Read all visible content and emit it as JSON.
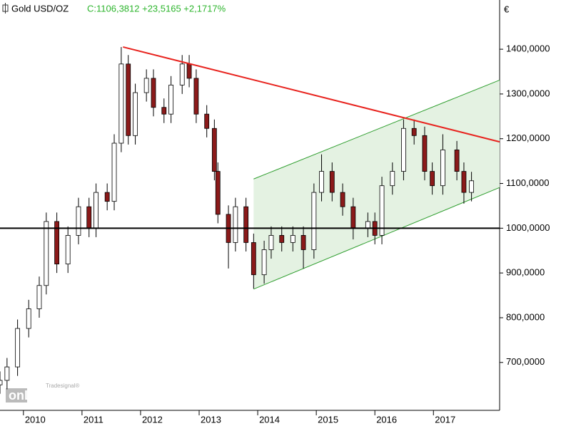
{
  "chart_data": {
    "type": "candlestick",
    "title": "Gold USD/OZ",
    "subtitle": "C:1106,3812 +23,5165 +2,1717%",
    "y_unit": "€",
    "logo": [
      "Tradesignal®",
      "onLine"
    ],
    "x": [
      2009.6,
      2009.72,
      2009.9,
      2010.09,
      2010.27,
      2010.39,
      2010.57,
      2010.76,
      2010.94,
      2011.12,
      2011.24,
      2011.43,
      2011.55,
      2011.67,
      2011.79,
      2011.91,
      2012.1,
      2012.22,
      2012.4,
      2012.52,
      2012.71,
      2012.83,
      2012.95,
      2013.13,
      2013.26,
      2013.32,
      2013.5,
      2013.62,
      2013.8,
      2013.93,
      2014.11,
      2014.23,
      2014.41,
      2014.6,
      2014.78,
      2014.96,
      2015.09,
      2015.27,
      2015.45,
      2015.63,
      2015.88,
      2016.0,
      2016.12,
      2016.3,
      2016.49,
      2016.67,
      2016.85,
      2016.98,
      2017.16,
      2017.4,
      2017.52,
      2017.65
    ],
    "open": [
      650,
      660,
      690,
      776,
      820,
      872,
      1015,
      920,
      984,
      1048,
      1000,
      1080,
      1060,
      1190,
      1367,
      1207,
      1303,
      1335,
      1270,
      1255,
      1320,
      1367,
      1335,
      1255,
      1223,
      1127,
      1031,
      968,
      1048,
      968,
      896,
      952,
      984,
      968,
      984,
      952,
      1080,
      1127,
      1080,
      1048,
      1000,
      1015,
      984,
      1095,
      1127,
      1223,
      1207,
      1127,
      1095,
      1175,
      1127,
      1080
    ],
    "high": [
      680,
      710,
      796,
      840,
      892,
      1035,
      1035,
      1004,
      1068,
      1068,
      1100,
      1100,
      1210,
      1405,
      1387,
      1323,
      1355,
      1355,
      1290,
      1340,
      1387,
      1387,
      1355,
      1275,
      1243,
      1147,
      1051,
      1068,
      1068,
      988,
      972,
      1004,
      1004,
      1004,
      1004,
      1100,
      1165,
      1147,
      1100,
      1068,
      1035,
      1035,
      1115,
      1147,
      1243,
      1243,
      1227,
      1147,
      1210,
      1195,
      1147,
      1126
    ],
    "low": [
      630,
      640,
      670,
      756,
      800,
      852,
      900,
      900,
      964,
      980,
      980,
      1040,
      1040,
      1170,
      1187,
      1187,
      1283,
      1250,
      1235,
      1235,
      1300,
      1315,
      1235,
      1203,
      1107,
      1011,
      910,
      948,
      948,
      865,
      876,
      932,
      948,
      948,
      910,
      932,
      1060,
      1060,
      1028,
      975,
      980,
      964,
      964,
      1075,
      1107,
      1187,
      1107,
      1075,
      1075,
      1107,
      1055,
      1060
    ],
    "close": [
      660,
      690,
      776,
      820,
      872,
      1015,
      920,
      984,
      1048,
      1000,
      1080,
      1060,
      1190,
      1367,
      1207,
      1303,
      1335,
      1270,
      1255,
      1320,
      1367,
      1335,
      1255,
      1223,
      1127,
      1031,
      968,
      1048,
      968,
      896,
      952,
      984,
      968,
      984,
      952,
      1080,
      1127,
      1080,
      1048,
      1000,
      1015,
      984,
      1095,
      1127,
      1223,
      1207,
      1127,
      1095,
      1175,
      1127,
      1080,
      1106
    ],
    "up_color": "#ffffff",
    "down_color": "#8b1a1a",
    "xlim": [
      2009.6,
      2018.13
    ],
    "xticks": [
      2010,
      2011,
      2012,
      2013,
      2014,
      2015,
      2016,
      2017
    ],
    "ylim": [
      593,
      1510
    ],
    "yticks": [
      {
        "value": 700,
        "label": "700,0000"
      },
      {
        "value": 800,
        "label": "800,0000"
      },
      {
        "value": 900,
        "label": "900,0000"
      },
      {
        "value": 1000,
        "label": "1000,0000"
      },
      {
        "value": 1100,
        "label": "1100,0000"
      },
      {
        "value": 1200,
        "label": "1200,0000"
      },
      {
        "value": 1300,
        "label": "1300,0000"
      },
      {
        "value": 1400,
        "label": "1400,0000"
      }
    ],
    "channel": {
      "x": [
        2013.93,
        2018.13
      ],
      "upper": [
        1110,
        1331
      ],
      "lower": [
        864,
        1091
      ],
      "color": "#2e9e2e",
      "fill": "#e4f2e2"
    },
    "lines": [
      {
        "x": [
          2011.7,
          2018.13
        ],
        "y": [
          1405,
          1193
        ],
        "color": "#e8231e"
      },
      {
        "x": [
          2009.6,
          2018.13
        ],
        "y": [
          1000,
          1000
        ],
        "color": "#000000"
      }
    ]
  }
}
